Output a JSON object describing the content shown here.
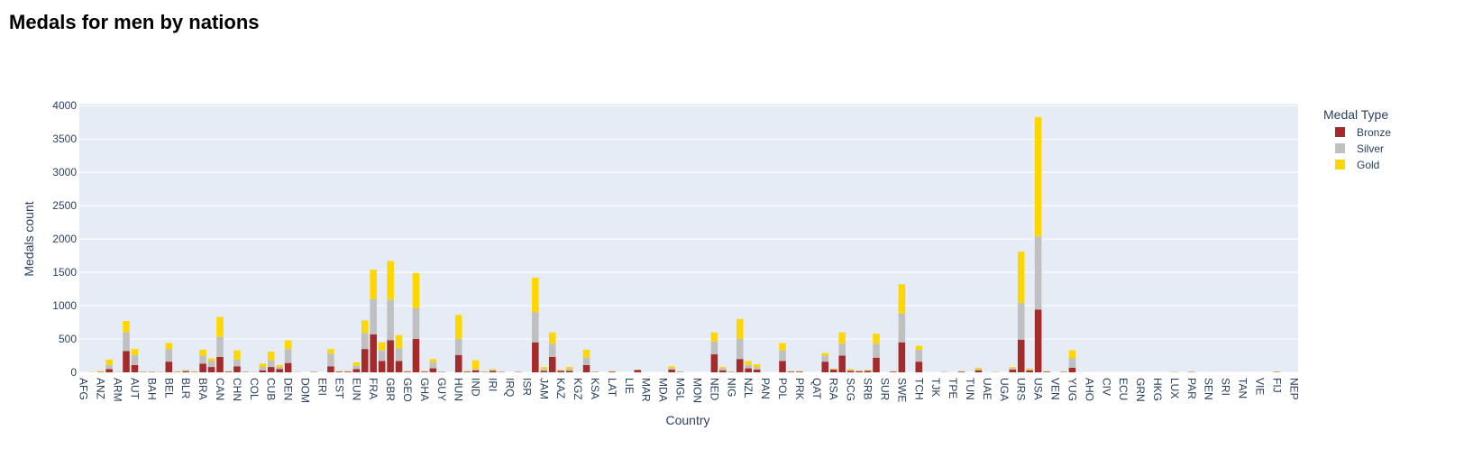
{
  "chart_data": {
    "type": "stacked_bar",
    "title": "Medals for men by nations",
    "x_label": "Country",
    "y_label": "Medals count",
    "legend_title": "Medal Type",
    "legend_position": "right",
    "grid": true,
    "plot_bg": "#e5ecf6",
    "categories": [
      "AFG",
      null,
      "ANZ",
      null,
      "ARM",
      null,
      "AUT",
      null,
      "BAH",
      null,
      "BEL",
      null,
      "BLR",
      null,
      "BRA",
      null,
      "CAN",
      null,
      "CHN",
      null,
      "COL",
      null,
      "CUB",
      null,
      "DEN",
      null,
      "DOM",
      null,
      "ERI",
      null,
      "EST",
      null,
      "EUN",
      null,
      "FRA",
      null,
      "GBR",
      null,
      "GEO",
      null,
      "GHA",
      null,
      "GUY",
      null,
      "HUN",
      null,
      "IND",
      null,
      "IRI",
      null,
      "IRQ",
      null,
      "ISR",
      null,
      "JAM",
      null,
      "KAZ",
      null,
      "KGZ",
      null,
      "KSA",
      null,
      "LAT",
      null,
      "LIE",
      null,
      "MAR",
      null,
      "MDA",
      null,
      "MGL",
      null,
      "MON",
      null,
      "NED",
      null,
      "NIG",
      null,
      "NZL",
      null,
      "PAN",
      null,
      "POL",
      null,
      "PRK",
      null,
      "QAT",
      null,
      "RSA",
      null,
      "SCG",
      null,
      "SRB",
      null,
      "SUR",
      null,
      "SWE",
      null,
      "TCH",
      null,
      "TJK",
      null,
      "TPE",
      null,
      "TUN",
      null,
      "UAE",
      null,
      "UGA",
      null,
      "URS",
      null,
      "USA",
      null,
      "VEN",
      null,
      "YUG",
      null,
      "AHO",
      null,
      "CIV",
      null,
      "ECU",
      null,
      "GRN",
      null,
      "HKG",
      null,
      "LUX",
      null,
      "PAR",
      null,
      "SEN",
      null,
      "SRI",
      null,
      "TAN",
      null,
      "VIE",
      null,
      "FIJ",
      null,
      "NEP"
    ],
    "ylim": [
      0,
      4030
    ],
    "yticks": [
      0,
      500,
      1000,
      1500,
      2000,
      2500,
      3000,
      3500,
      4000
    ],
    "series": [
      {
        "name": "Bronze",
        "color": "#a52a2a",
        "values": [
          0,
          0,
          5,
          50,
          2,
          320,
          110,
          5,
          5,
          3,
          160,
          5,
          15,
          5,
          130,
          80,
          230,
          10,
          90,
          5,
          2,
          30,
          80,
          50,
          140,
          2,
          0,
          5,
          0,
          90,
          10,
          10,
          50,
          350,
          570,
          170,
          480,
          170,
          10,
          500,
          10,
          60,
          5,
          0,
          260,
          10,
          30,
          5,
          20,
          5,
          0,
          5,
          0,
          450,
          20,
          230,
          20,
          20,
          0,
          110,
          5,
          0,
          10,
          0,
          0,
          35,
          0,
          0,
          0,
          40,
          5,
          0,
          0,
          0,
          270,
          30,
          5,
          200,
          60,
          40,
          0,
          0,
          170,
          10,
          10,
          0,
          0,
          160,
          40,
          250,
          20,
          15,
          20,
          220,
          0,
          10,
          450,
          0,
          160,
          0,
          0,
          3,
          0,
          10,
          0,
          30,
          0,
          3,
          0,
          40,
          490,
          30,
          940,
          10,
          0,
          5,
          70,
          0,
          0,
          0,
          0,
          0,
          0,
          0,
          0,
          0,
          0,
          0,
          3,
          0,
          5,
          0,
          0,
          0,
          0,
          0,
          0,
          0,
          0,
          0,
          5,
          0,
          0
        ]
      },
      {
        "name": "Silver",
        "color": "#c0c0c0",
        "values": [
          0,
          0,
          5,
          60,
          2,
          280,
          150,
          3,
          3,
          2,
          190,
          5,
          15,
          5,
          120,
          90,
          300,
          5,
          100,
          3,
          2,
          50,
          100,
          30,
          210,
          2,
          0,
          3,
          0,
          190,
          5,
          5,
          50,
          240,
          530,
          160,
          610,
          190,
          5,
          460,
          5,
          90,
          3,
          0,
          240,
          5,
          20,
          3,
          15,
          3,
          0,
          3,
          0,
          450,
          30,
          200,
          10,
          30,
          0,
          110,
          3,
          0,
          5,
          0,
          0,
          3,
          0,
          0,
          0,
          20,
          3,
          0,
          0,
          0,
          190,
          30,
          3,
          300,
          50,
          40,
          0,
          0,
          160,
          5,
          5,
          0,
          0,
          90,
          10,
          180,
          15,
          10,
          10,
          210,
          0,
          5,
          430,
          0,
          180,
          0,
          0,
          2,
          0,
          5,
          0,
          20,
          0,
          2,
          0,
          20,
          550,
          15,
          1100,
          5,
          0,
          5,
          140,
          0,
          0,
          0,
          0,
          0,
          0,
          0,
          0,
          0,
          0,
          0,
          2,
          0,
          3,
          0,
          0,
          0,
          0,
          0,
          0,
          0,
          0,
          0,
          3,
          0,
          0
        ]
      },
      {
        "name": "Gold",
        "color": "#ffd700",
        "values": [
          0,
          5,
          10,
          80,
          2,
          170,
          90,
          2,
          2,
          2,
          90,
          5,
          10,
          5,
          90,
          40,
          300,
          5,
          140,
          2,
          1,
          50,
          130,
          30,
          130,
          1,
          0,
          2,
          0,
          70,
          5,
          5,
          50,
          190,
          440,
          120,
          580,
          200,
          5,
          530,
          5,
          50,
          2,
          0,
          360,
          5,
          130,
          2,
          15,
          2,
          0,
          2,
          0,
          520,
          30,
          170,
          10,
          30,
          0,
          120,
          2,
          0,
          5,
          0,
          0,
          2,
          0,
          0,
          0,
          30,
          2,
          0,
          0,
          0,
          140,
          20,
          2,
          300,
          60,
          40,
          0,
          0,
          110,
          5,
          5,
          0,
          0,
          40,
          10,
          170,
          15,
          5,
          10,
          150,
          0,
          5,
          440,
          0,
          60,
          0,
          0,
          0,
          0,
          5,
          0,
          20,
          0,
          2,
          0,
          20,
          770,
          15,
          1790,
          5,
          0,
          5,
          120,
          0,
          0,
          0,
          0,
          0,
          0,
          0,
          0,
          0,
          0,
          0,
          2,
          0,
          2,
          0,
          0,
          0,
          0,
          0,
          0,
          0,
          0,
          0,
          5,
          0,
          0
        ]
      }
    ]
  }
}
